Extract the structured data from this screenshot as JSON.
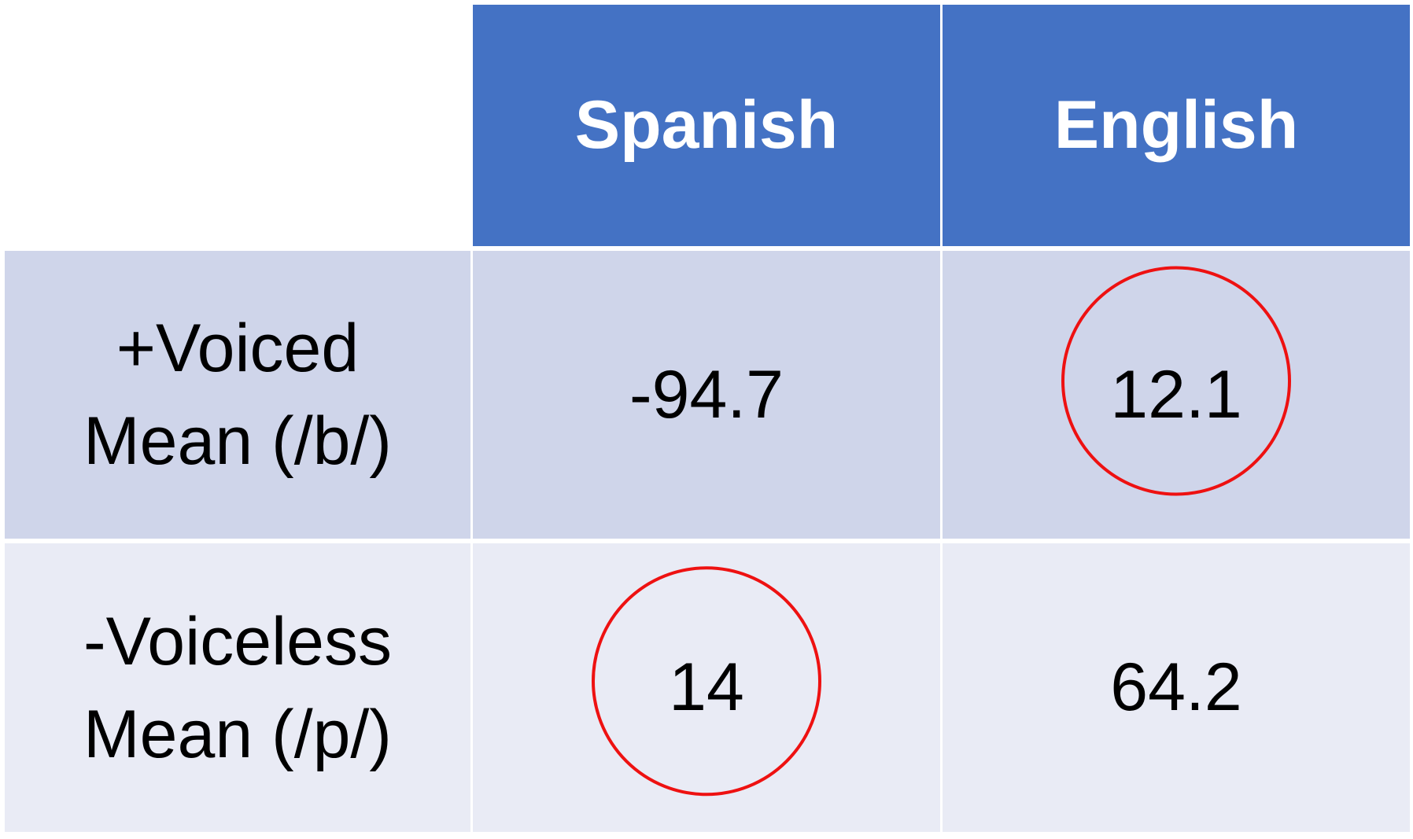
{
  "table": {
    "columns": [
      "Spanish",
      "English"
    ],
    "rows": [
      {
        "label_line1": "+Voiced",
        "label_line2": "Mean (/b/)",
        "values": [
          "-94.7",
          "12.1"
        ],
        "circled": [
          false,
          true
        ]
      },
      {
        "label_line1": "-Voiceless",
        "label_line2": "Mean (/p/)",
        "values": [
          "14",
          "64.2"
        ],
        "circled": [
          true,
          false
        ]
      }
    ]
  },
  "colors": {
    "header_bg": "#4472C4",
    "row1_bg": "#CFD5EA",
    "row2_bg": "#E9EBF5",
    "circle": "#EE1111"
  }
}
